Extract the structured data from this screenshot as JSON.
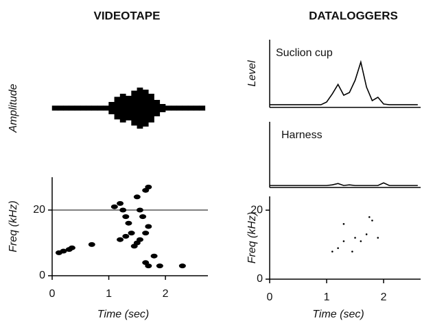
{
  "headings": [
    "VIDEOTAPE",
    "DATALOGGERS"
  ],
  "chart_data": [
    {
      "type": "waveform",
      "ylabel": "Amplitude",
      "xlim": [
        0,
        2.75
      ],
      "ylim": [
        -1,
        1
      ],
      "x": [
        0.05,
        0.15,
        0.25,
        0.35,
        0.45,
        0.55,
        0.65,
        0.75,
        0.85,
        0.95,
        1.05,
        1.15,
        1.25,
        1.35,
        1.45,
        1.55,
        1.65,
        1.75,
        1.85,
        1.95,
        2.05,
        2.15,
        2.25,
        2.35,
        2.45,
        2.55,
        2.65
      ],
      "values": [
        0.12,
        0.12,
        0.12,
        0.12,
        0.12,
        0.12,
        0.12,
        0.12,
        0.12,
        0.12,
        0.3,
        0.55,
        0.7,
        0.6,
        0.85,
        1.0,
        0.9,
        0.7,
        0.4,
        0.2,
        0.12,
        0.12,
        0.12,
        0.12,
        0.12,
        0.12,
        0.12
      ],
      "color": "#000000"
    },
    {
      "type": "scatter",
      "ylabel": "Freq (kHz)",
      "xlabel": "Time (sec)",
      "xlim": [
        0,
        2.75
      ],
      "ylim": [
        0,
        30
      ],
      "xticks": [
        0,
        1,
        2
      ],
      "yticks": [
        0,
        20
      ],
      "hline": 20,
      "x": [
        0.12,
        0.2,
        0.3,
        0.35,
        0.7,
        1.1,
        1.2,
        1.25,
        1.3,
        1.35,
        1.2,
        1.3,
        1.4,
        1.5,
        1.55,
        1.6,
        1.45,
        1.5,
        1.55,
        1.65,
        1.7,
        1.65,
        1.7,
        1.65,
        1.7,
        1.8,
        1.9,
        2.3
      ],
      "y": [
        7,
        7.5,
        8,
        8.5,
        9.5,
        21,
        22,
        20,
        18,
        16,
        11,
        12,
        13,
        24,
        20,
        18,
        9,
        10,
        11,
        26,
        27,
        13,
        15,
        4,
        3,
        6,
        3,
        3
      ],
      "color": "#000000"
    },
    {
      "type": "line",
      "ylabel": "Level",
      "label": "Suclion cup",
      "xlim": [
        0,
        2.65
      ],
      "ylim": [
        0,
        1
      ],
      "x": [
        0,
        0.1,
        0.2,
        0.3,
        0.4,
        0.5,
        0.6,
        0.7,
        0.8,
        0.9,
        1.0,
        1.1,
        1.2,
        1.3,
        1.4,
        1.5,
        1.6,
        1.7,
        1.8,
        1.9,
        2.0,
        2.1,
        2.2,
        2.3,
        2.4,
        2.5,
        2.6
      ],
      "values": [
        0.04,
        0.04,
        0.04,
        0.04,
        0.04,
        0.04,
        0.04,
        0.04,
        0.04,
        0.04,
        0.08,
        0.2,
        0.34,
        0.18,
        0.22,
        0.4,
        0.67,
        0.3,
        0.1,
        0.15,
        0.05,
        0.04,
        0.04,
        0.04,
        0.04,
        0.04,
        0.04
      ],
      "color": "#000000"
    },
    {
      "type": "line",
      "label": "Harness",
      "xlim": [
        0,
        2.65
      ],
      "ylim": [
        0,
        1
      ],
      "x": [
        0,
        0.1,
        0.2,
        0.3,
        0.4,
        0.5,
        0.6,
        0.7,
        0.8,
        0.9,
        1.0,
        1.1,
        1.2,
        1.3,
        1.4,
        1.5,
        1.6,
        1.7,
        1.8,
        1.9,
        2.0,
        2.1,
        2.2,
        2.3,
        2.4,
        2.5,
        2.6
      ],
      "values": [
        0.03,
        0.03,
        0.03,
        0.03,
        0.03,
        0.03,
        0.03,
        0.03,
        0.03,
        0.03,
        0.03,
        0.04,
        0.06,
        0.03,
        0.04,
        0.03,
        0.03,
        0.03,
        0.03,
        0.03,
        0.07,
        0.03,
        0.03,
        0.03,
        0.03,
        0.03,
        0.03
      ],
      "color": "#000000"
    },
    {
      "type": "scatter",
      "ylabel": "Freq (kHz)",
      "xlabel": "Time (sec)",
      "xlim": [
        0,
        2.65
      ],
      "ylim": [
        0,
        24
      ],
      "xticks": [
        0,
        1,
        2
      ],
      "yticks": [
        0,
        20
      ],
      "x": [
        1.1,
        1.2,
        1.3,
        1.45,
        1.5,
        1.6,
        1.7,
        1.8,
        1.9,
        1.3,
        1.75
      ],
      "y": [
        8,
        9,
        11,
        8,
        12,
        11,
        13,
        17,
        12,
        16,
        18
      ],
      "color": "#000000"
    }
  ]
}
